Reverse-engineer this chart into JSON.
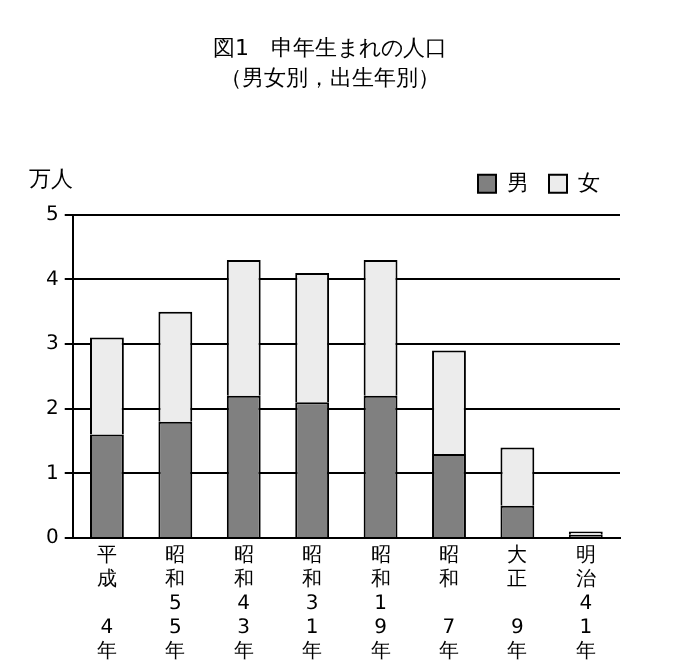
{
  "chart_data": {
    "type": "bar",
    "title": "図1　申年生まれの人口",
    "subtitle": "（男女別，出生年別）",
    "ylabel": "万人",
    "categories": [
      "平成4年",
      "昭和55年",
      "昭和43年",
      "昭和31年",
      "昭和19年",
      "昭和7年",
      "大正9年",
      "明治41年"
    ],
    "series": [
      {
        "name": "男",
        "color": "#808080",
        "values": [
          1.6,
          1.8,
          2.2,
          2.1,
          2.2,
          1.3,
          0.5,
          0.05
        ]
      },
      {
        "name": "女",
        "color": "#ececec",
        "values": [
          1.5,
          1.7,
          2.1,
          2.0,
          2.1,
          1.6,
          0.9,
          0.05
        ]
      }
    ],
    "stacked": true,
    "ylim": [
      0,
      5
    ],
    "yticks": [
      0,
      1,
      2,
      3,
      4,
      5
    ],
    "grid": "y",
    "legend": "top right"
  }
}
